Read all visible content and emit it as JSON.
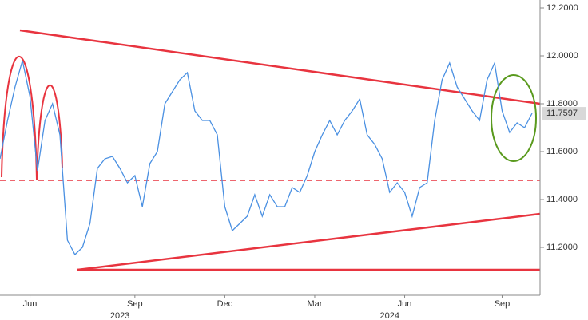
{
  "chart_data": {
    "type": "line",
    "categories": [
      null,
      null,
      null,
      null,
      "Jun",
      null,
      null,
      null,
      null,
      null,
      null,
      null,
      null,
      null,
      null,
      null,
      null,
      null,
      "Sep",
      null,
      null,
      null,
      null,
      null,
      null,
      null,
      null,
      null,
      null,
      null,
      "Dec",
      null,
      null,
      null,
      null,
      null,
      null,
      null,
      null,
      null,
      null,
      null,
      "Mar",
      null,
      null,
      null,
      null,
      null,
      null,
      null,
      null,
      null,
      null,
      null,
      "Jun",
      null,
      null,
      null,
      null,
      null,
      null,
      null,
      null,
      null,
      null,
      null,
      null,
      "Sep",
      null,
      null,
      null,
      null
    ],
    "x_group_labels": [
      "2023",
      "2024"
    ],
    "series": [
      {
        "color": "#4a90e2",
        "values": [
          11.57,
          11.73,
          11.87,
          11.98,
          11.83,
          11.52,
          11.73,
          11.8,
          11.67,
          11.23,
          11.17,
          11.2,
          11.3,
          11.53,
          11.57,
          11.58,
          11.53,
          11.47,
          11.5,
          11.37,
          11.55,
          11.6,
          11.8,
          11.85,
          11.9,
          11.93,
          11.77,
          11.73,
          11.73,
          11.67,
          11.37,
          11.27,
          11.3,
          11.33,
          11.42,
          11.33,
          11.42,
          11.37,
          11.37,
          11.45,
          11.43,
          11.5,
          11.6,
          11.67,
          11.73,
          11.67,
          11.73,
          11.77,
          11.82,
          11.67,
          11.63,
          11.57,
          11.43,
          11.47,
          11.43,
          11.33,
          11.45,
          11.47,
          11.73,
          11.9,
          11.97,
          11.87,
          11.82,
          11.77,
          11.73,
          11.9,
          11.97,
          11.77,
          11.68,
          11.72,
          11.7,
          11.76
        ]
      }
    ],
    "last_value": 11.7597,
    "ylim": [
      11.0,
      12.2333
    ],
    "yticks": [
      {
        "value": 11.2,
        "label": "11.2000"
      },
      {
        "value": 11.4,
        "label": "11.4000"
      },
      {
        "value": 11.6,
        "label": "11.6000"
      },
      {
        "value": 11.8,
        "label": "11.8000"
      },
      {
        "value": 12.0,
        "label": "12.0000"
      },
      {
        "value": 12.2,
        "label": "12.2000"
      }
    ]
  }
}
